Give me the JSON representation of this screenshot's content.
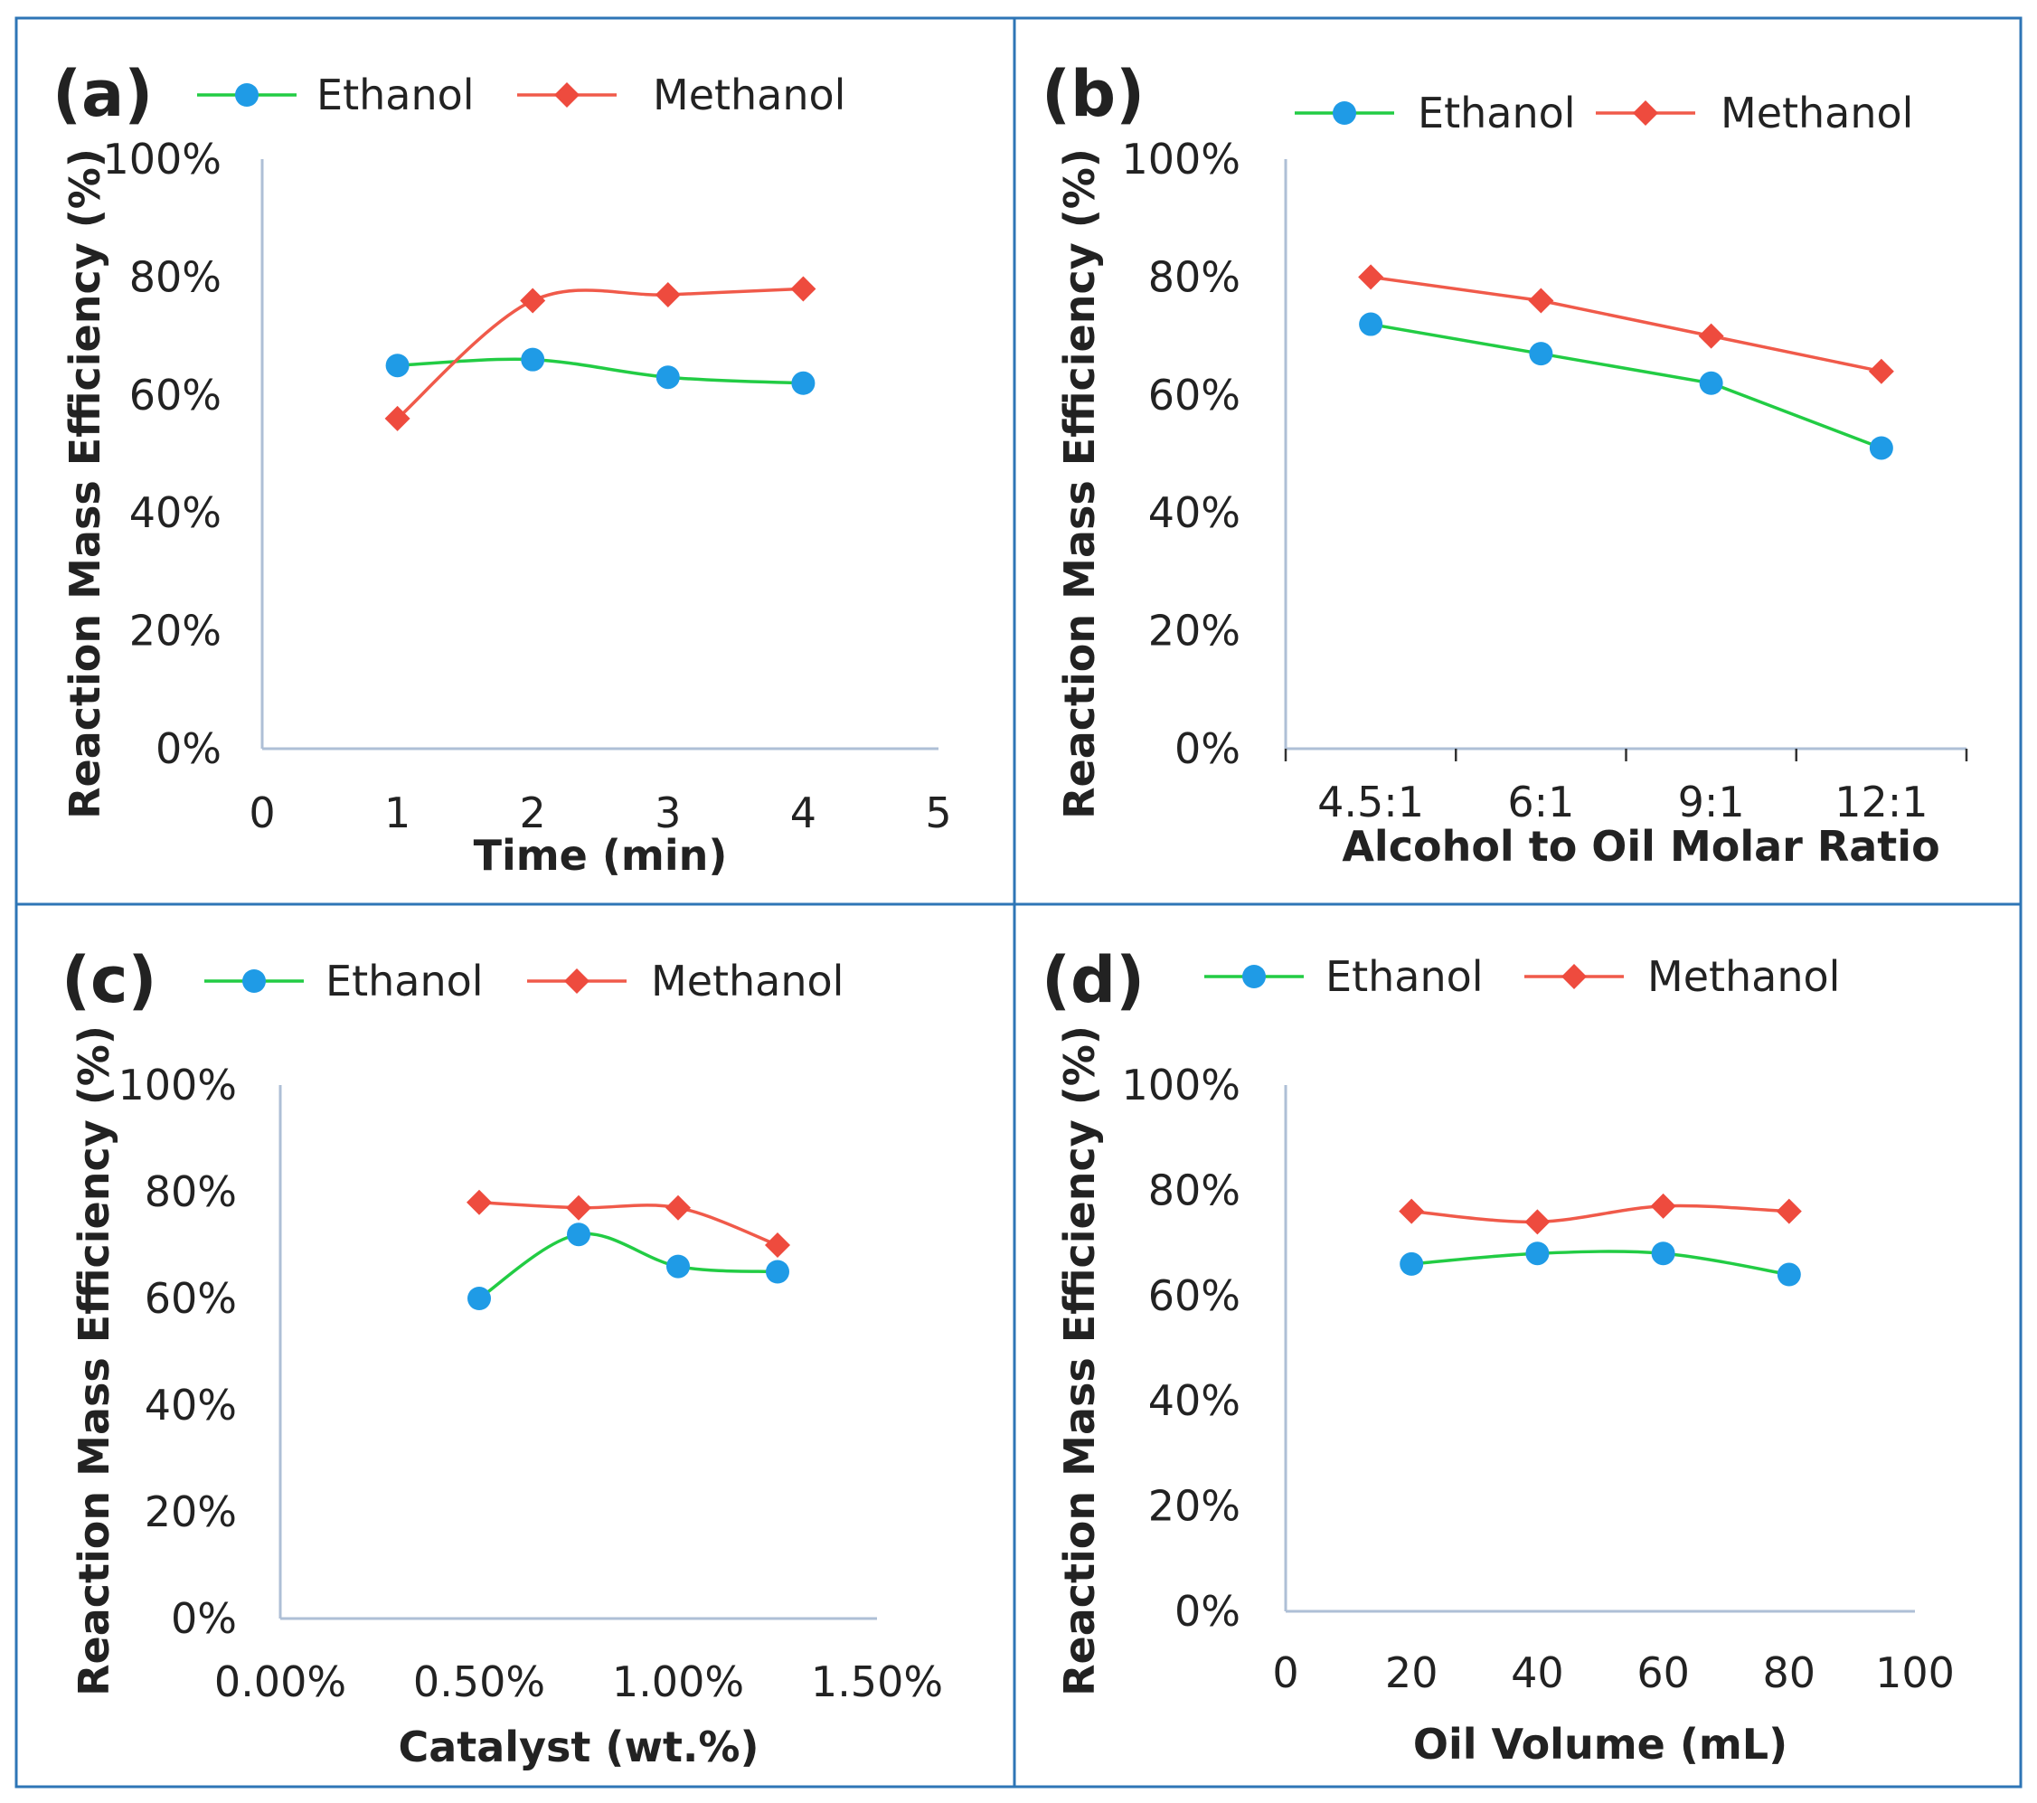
{
  "colors": {
    "border": "#2e75b6",
    "axis": "#aebfd6",
    "ethanol": "#22cc44",
    "ethanol_marker": "#1f9be6",
    "methanol": "#f05a4a",
    "methanol_marker": "#ee4b3e",
    "text": "#222222"
  },
  "chart_data": [
    {
      "panel": "(a)",
      "type": "line",
      "smooth": true,
      "x_axis": "numeric",
      "xlabel": "Time (min)",
      "ylabel": "Reaction Mass Efficiency (%)",
      "xlim": [
        0,
        5
      ],
      "ylim": [
        0,
        100
      ],
      "xticks": [
        "0",
        "1",
        "2",
        "3",
        "4",
        "5"
      ],
      "xtick_values": [
        0,
        1,
        2,
        3,
        4,
        5
      ],
      "yticks": [
        "0%",
        "20%",
        "40%",
        "60%",
        "80%",
        "100%"
      ],
      "legend": "top",
      "series": [
        {
          "name": "Ethanol",
          "x": [
            1,
            2,
            3,
            4
          ],
          "values": [
            65,
            66,
            63,
            62
          ]
        },
        {
          "name": "Methanol",
          "x": [
            1,
            2,
            3,
            4
          ],
          "values": [
            56,
            76,
            77,
            78
          ]
        }
      ]
    },
    {
      "panel": "(b)",
      "type": "line",
      "smooth": false,
      "x_axis": "category",
      "xlabel": "Alcohol to Oil Molar Ratio",
      "ylabel": "Reaction Mass Efficiency (%)",
      "ylim": [
        0,
        100
      ],
      "categories": [
        "4.5:1",
        "6:1",
        "9:1",
        "12:1"
      ],
      "yticks": [
        "0%",
        "20%",
        "40%",
        "60%",
        "80%",
        "100%"
      ],
      "legend": "top",
      "series": [
        {
          "name": "Ethanol",
          "values": [
            72,
            67,
            62,
            51
          ]
        },
        {
          "name": "Methanol",
          "values": [
            80,
            76,
            70,
            64
          ]
        }
      ]
    },
    {
      "panel": "(c)",
      "type": "line",
      "smooth": true,
      "x_axis": "numeric",
      "xlabel": "Catalyst (wt.%)",
      "ylabel": "Reaction Mass Efficiency (%)",
      "xlim": [
        0,
        1.5
      ],
      "ylim": [
        0,
        100
      ],
      "xticks": [
        "0.00%",
        "0.50%",
        "1.00%",
        "1.50%"
      ],
      "xtick_values": [
        0,
        0.5,
        1.0,
        1.5
      ],
      "yticks": [
        "0%",
        "20%",
        "40%",
        "60%",
        "80%",
        "100%"
      ],
      "legend": "top",
      "series": [
        {
          "name": "Ethanol",
          "x": [
            0.5,
            0.75,
            1.0,
            1.25
          ],
          "values": [
            60,
            72,
            66,
            65
          ]
        },
        {
          "name": "Methanol",
          "x": [
            0.5,
            0.75,
            1.0,
            1.25
          ],
          "values": [
            78,
            77,
            77,
            70
          ]
        }
      ]
    },
    {
      "panel": "(d)",
      "type": "line",
      "smooth": true,
      "x_axis": "numeric",
      "xlabel": "Oil Volume (mL)",
      "ylabel": "Reaction Mass Efficiency (%)",
      "xlim": [
        0,
        100
      ],
      "ylim": [
        0,
        100
      ],
      "xticks": [
        "0",
        "20",
        "40",
        "60",
        "80",
        "100"
      ],
      "xtick_values": [
        0,
        20,
        40,
        60,
        80,
        100
      ],
      "yticks": [
        "0%",
        "20%",
        "40%",
        "60%",
        "80%",
        "100%"
      ],
      "legend": "top",
      "series": [
        {
          "name": "Ethanol",
          "x": [
            20,
            40,
            60,
            80
          ],
          "values": [
            66,
            68,
            68,
            64
          ]
        },
        {
          "name": "Methanol",
          "x": [
            20,
            40,
            60,
            80
          ],
          "values": [
            76,
            74,
            77,
            76
          ]
        }
      ]
    }
  ]
}
